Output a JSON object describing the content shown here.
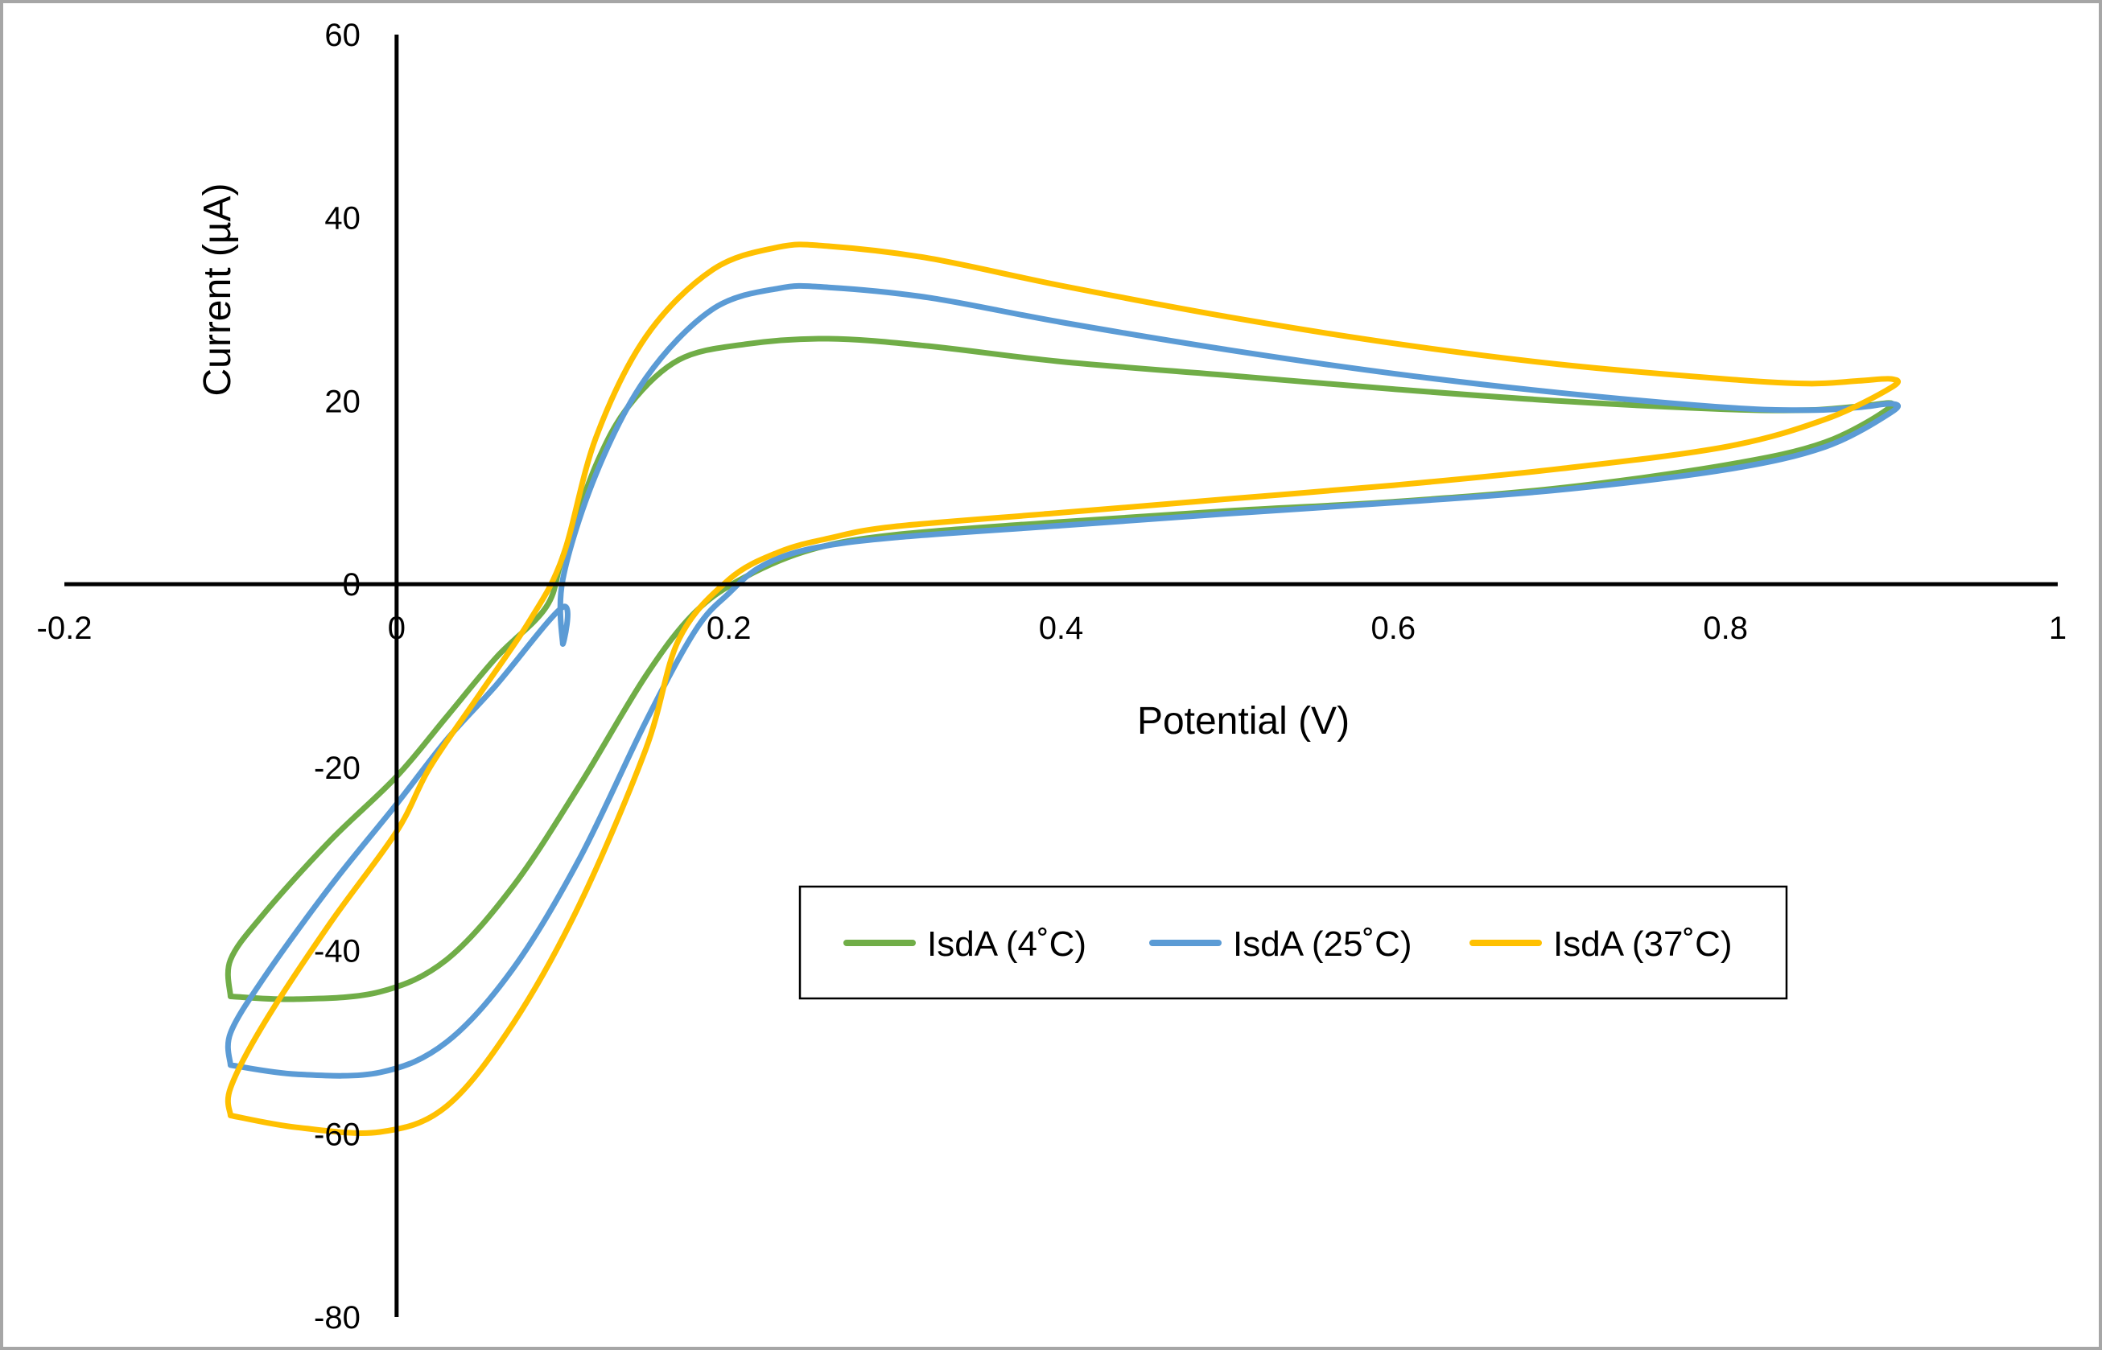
{
  "chart_data": {
    "type": "line",
    "title": "",
    "xlabel": "Potential (V)",
    "ylabel": "Current (µA)",
    "xlim": [
      -0.2,
      1.0
    ],
    "ylim": [
      -80,
      60
    ],
    "x_ticks": [
      -0.2,
      0,
      0.2,
      0.4,
      0.6,
      0.8,
      1
    ],
    "x_tick_labels": [
      "-0.2",
      "0",
      "0.2",
      "0.4",
      "0.6",
      "0.8",
      "1"
    ],
    "y_ticks": [
      60,
      40,
      20,
      0,
      -20,
      -40,
      -60,
      -80
    ],
    "y_tick_labels": [
      "60",
      "40",
      "20",
      "0",
      "-20",
      "-40",
      "-60",
      "-80"
    ],
    "grid": false,
    "legend": "bottom-center",
    "series": [
      {
        "name": "IsdA (4˚C)",
        "color": "#70ad47",
        "points": [
          [
            -0.1,
            -45
          ],
          [
            -0.06,
            -45.3
          ],
          [
            -0.01,
            -44.5
          ],
          [
            0.03,
            -41
          ],
          [
            0.07,
            -33
          ],
          [
            0.11,
            -22
          ],
          [
            0.15,
            -10
          ],
          [
            0.18,
            -3
          ],
          [
            0.21,
            0.8
          ],
          [
            0.25,
            3.8
          ],
          [
            0.3,
            5.4
          ],
          [
            0.4,
            6.8
          ],
          [
            0.5,
            8.0
          ],
          [
            0.6,
            9.0
          ],
          [
            0.7,
            10.5
          ],
          [
            0.8,
            13.0
          ],
          [
            0.86,
            15.5
          ],
          [
            0.9,
            19.5
          ],
          [
            0.88,
            19.4
          ],
          [
            0.85,
            19.0
          ],
          [
            0.8,
            19.1
          ],
          [
            0.7,
            20.0
          ],
          [
            0.6,
            21.3
          ],
          [
            0.5,
            22.8
          ],
          [
            0.4,
            24.3
          ],
          [
            0.32,
            26.0
          ],
          [
            0.26,
            26.8
          ],
          [
            0.21,
            26.2
          ],
          [
            0.17,
            24.5
          ],
          [
            0.14,
            19.5
          ],
          [
            0.12,
            13.0
          ],
          [
            0.1,
            3.0
          ],
          [
            0.09,
            -2.5
          ],
          [
            0.06,
            -8
          ],
          [
            0.03,
            -14.5
          ],
          [
            0.0,
            -21
          ],
          [
            -0.04,
            -28
          ],
          [
            -0.08,
            -36
          ],
          [
            -0.1,
            -41
          ],
          [
            -0.1,
            -45
          ]
        ]
      },
      {
        "name": "IsdA (25˚C)",
        "color": "#5b9bd5",
        "points": [
          [
            -0.1,
            -52.5
          ],
          [
            -0.06,
            -53.5
          ],
          [
            -0.01,
            -53.3
          ],
          [
            0.03,
            -50
          ],
          [
            0.07,
            -42
          ],
          [
            0.11,
            -30
          ],
          [
            0.15,
            -15
          ],
          [
            0.18,
            -5
          ],
          [
            0.2,
            -1
          ],
          [
            0.22,
            2
          ],
          [
            0.25,
            3.9
          ],
          [
            0.3,
            5.1
          ],
          [
            0.4,
            6.4
          ],
          [
            0.5,
            7.7
          ],
          [
            0.6,
            8.9
          ],
          [
            0.7,
            10.3
          ],
          [
            0.8,
            12.5
          ],
          [
            0.86,
            15.0
          ],
          [
            0.9,
            18.8
          ],
          [
            0.9,
            19.7
          ],
          [
            0.88,
            19.3
          ],
          [
            0.85,
            19.0
          ],
          [
            0.8,
            19.3
          ],
          [
            0.7,
            20.9
          ],
          [
            0.6,
            23.0
          ],
          [
            0.5,
            25.6
          ],
          [
            0.4,
            28.6
          ],
          [
            0.32,
            31.3
          ],
          [
            0.26,
            32.4
          ],
          [
            0.23,
            32.3
          ],
          [
            0.19,
            30.0
          ],
          [
            0.15,
            22.5
          ],
          [
            0.12,
            12.0
          ],
          [
            0.1,
            0.5
          ],
          [
            0.1,
            -6.5
          ],
          [
            0.1,
            -2.5
          ],
          [
            0.06,
            -11
          ],
          [
            0.03,
            -17
          ],
          [
            0.0,
            -24
          ],
          [
            -0.04,
            -33
          ],
          [
            -0.08,
            -43
          ],
          [
            -0.1,
            -49
          ],
          [
            -0.1,
            -52.5
          ]
        ]
      },
      {
        "name": "IsdA (37˚C)",
        "color": "#ffc000",
        "points": [
          [
            -0.1,
            -58
          ],
          [
            -0.06,
            -59.3
          ],
          [
            -0.01,
            -59.8
          ],
          [
            0.03,
            -57
          ],
          [
            0.07,
            -48
          ],
          [
            0.11,
            -35
          ],
          [
            0.15,
            -18
          ],
          [
            0.17,
            -6
          ],
          [
            0.2,
            0.5
          ],
          [
            0.23,
            3.5
          ],
          [
            0.26,
            5.0
          ],
          [
            0.3,
            6.3
          ],
          [
            0.4,
            7.8
          ],
          [
            0.5,
            9.3
          ],
          [
            0.6,
            10.8
          ],
          [
            0.7,
            12.6
          ],
          [
            0.8,
            15.0
          ],
          [
            0.86,
            18.0
          ],
          [
            0.9,
            21.5
          ],
          [
            0.9,
            22.4
          ],
          [
            0.88,
            22.2
          ],
          [
            0.85,
            21.9
          ],
          [
            0.8,
            22.4
          ],
          [
            0.7,
            24.0
          ],
          [
            0.6,
            26.3
          ],
          [
            0.5,
            29.2
          ],
          [
            0.4,
            32.6
          ],
          [
            0.32,
            35.6
          ],
          [
            0.26,
            36.9
          ],
          [
            0.23,
            36.8
          ],
          [
            0.19,
            34.3
          ],
          [
            0.15,
            27
          ],
          [
            0.12,
            16
          ],
          [
            0.1,
            3
          ],
          [
            0.08,
            -4
          ],
          [
            0.05,
            -12
          ],
          [
            0.02,
            -20
          ],
          [
            0.0,
            -27
          ],
          [
            -0.04,
            -37
          ],
          [
            -0.08,
            -48
          ],
          [
            -0.1,
            -55
          ],
          [
            -0.1,
            -58
          ]
        ]
      }
    ]
  }
}
